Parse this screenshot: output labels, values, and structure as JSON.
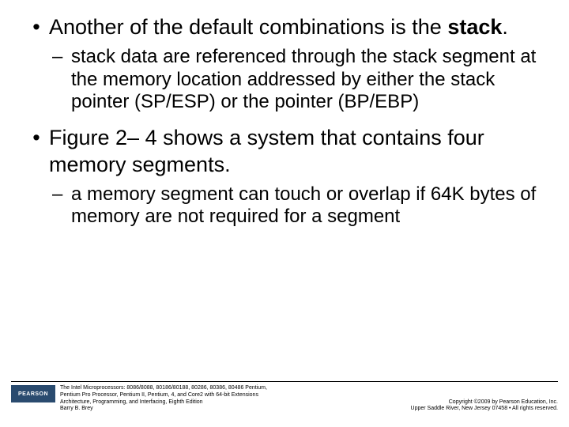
{
  "bullets": {
    "b1_pre": "Another of the default combinations is the ",
    "b1_bold": "stack",
    "b1_post": ".",
    "b1_sub": "stack data are referenced through the stack segment at the memory location addressed by either the stack pointer (SP/ESP) or the pointer (BP/EBP)",
    "b2": "Figure 2– 4 shows a system that contains four memory segments.",
    "b2_sub": "a memory segment can touch or overlap if 64K bytes of memory are not required for a segment"
  },
  "footer": {
    "logo": "PEARSON",
    "book_line1": "The Intel Microprocessors: 8086/8088, 80186/80188, 80286, 80386, 80486 Pentium,",
    "book_line2": "Pentium Pro Processor, Pentium II, Pentium, 4, and Core2 with 64-bit Extensions",
    "book_line3": "Architecture, Programming, and Interfacing, Eighth Edition",
    "book_line4": "Barry B. Brey",
    "copy_line1": "Copyright ©2009 by Pearson Education, Inc.",
    "copy_line2": "Upper Saddle River, New Jersey 07458 • All rights reserved."
  }
}
